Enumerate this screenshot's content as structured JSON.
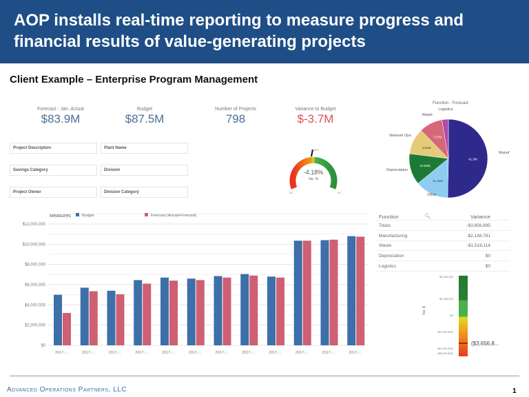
{
  "title": "AOP installs real-time reporting to measure progress and financial results of value-generating projects",
  "subtitle": "Client Example – Enterprise Program Management",
  "kpis": [
    {
      "label": "Forecast - Jan. Actual",
      "value": "$83.9M",
      "color": "#4a6f95"
    },
    {
      "label": "Budget",
      "value": "$87.5M",
      "color": "#4a6f95"
    },
    {
      "label": "Number of Projects",
      "value": "798",
      "color": "#4a6f95"
    },
    {
      "label": "Variance to Budget",
      "value": "$-3.7M",
      "color": "#d9534f"
    }
  ],
  "filters": [
    "Project Description",
    "Plant Name",
    "Savings Category",
    "Division",
    "Project Owner",
    "Division Category"
  ],
  "gauge": {
    "value": "-4.18%",
    "value_num": -4.18,
    "label": "Var. %",
    "top": "0.00%",
    "min": "-50...",
    "max": "50..."
  },
  "pie": {
    "title": "Function - Forecast",
    "slices": [
      {
        "name": "Manuf",
        "value": 41.3,
        "label": "41.3M",
        "color": "#2e2a8c"
      },
      {
        "name": "Other",
        "value": 11.32,
        "label": "11.32M",
        "color": "#8ecdf0"
      },
      {
        "name": "Depreciation",
        "value": 10.56,
        "label": "10.56M",
        "color": "#1d7a35"
      },
      {
        "name": "Network Ops",
        "value": 8.83,
        "label": "8.83M",
        "color": "#e3cb78"
      },
      {
        "name": "Waste",
        "value": 7.87,
        "label": "7.87M",
        "color": "#d4687a"
      },
      {
        "name": "Logistics",
        "value": 2.2,
        "label": "",
        "color": "#b04ca8"
      }
    ]
  },
  "table": {
    "headers": [
      "Function",
      "Variance"
    ],
    "rows": [
      [
        "Totals",
        "-$3,656,895"
      ],
      [
        "Manufacturing",
        "-$2,148,781"
      ],
      [
        "Waste",
        "-$1,516,114"
      ],
      [
        "Depreciation",
        "$0"
      ],
      [
        "Logistics",
        "$0"
      ]
    ]
  },
  "colorbar": {
    "axis_label": "Var. $",
    "ticks": [
      "$5,000,000",
      "$2,000,000",
      "$0",
      "($2,000,000)",
      "($4,000,000)",
      "($5,000,000)"
    ],
    "marker": "($3,656,8..."
  },
  "chart_data": {
    "type": "bar",
    "legend_title": "Measures",
    "categories": [
      "2017-...",
      "2017-...",
      "2017-...",
      "2017-...",
      "2017-...",
      "2017-...",
      "2017-...",
      "2017-...",
      "2017-...",
      "2017-...",
      "2017-...",
      "2017-..."
    ],
    "series": [
      {
        "name": "Budget",
        "color": "#3d6fa8",
        "values": [
          5000000,
          5700000,
          5400000,
          6450000,
          6700000,
          6600000,
          6850000,
          7050000,
          6800000,
          10350000,
          10400000,
          10800000
        ]
      },
      {
        "name": "Forecast (Actual+Forecast)",
        "color": "#cf5f73",
        "values": [
          3200000,
          5350000,
          5050000,
          6100000,
          6400000,
          6450000,
          6700000,
          6900000,
          6700000,
          10350000,
          10450000,
          10750000
        ]
      }
    ],
    "yticks": [
      "$0",
      "$2,000,000",
      "$4,000,000",
      "$6,000,000",
      "$8,000,000",
      "$10,000,000",
      "$12,000,000"
    ],
    "ylim": [
      0,
      12000000
    ],
    "grid": true,
    "legend": "top-left"
  },
  "footer": {
    "company": "Advanced Operations Partners, LLC",
    "page": "1"
  }
}
